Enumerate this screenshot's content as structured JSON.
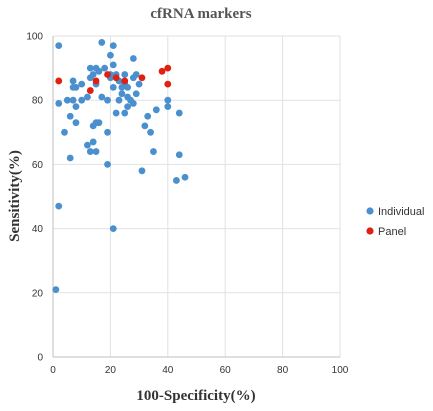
{
  "chart_data": {
    "type": "scatter",
    "title": "cfRNA markers",
    "xlabel": "100-Specificity(%)",
    "ylabel": "Sensitivity(%)",
    "xlim": [
      0,
      100
    ],
    "ylim": [
      0,
      100
    ],
    "x_ticks": [
      0,
      20,
      40,
      60,
      80,
      100
    ],
    "y_ticks": [
      0,
      20,
      40,
      60,
      80,
      100
    ],
    "x_tick_labels": [
      "0",
      "20",
      "40",
      "60",
      "80",
      "100"
    ],
    "y_tick_labels": [
      "0",
      "20",
      "40",
      "60",
      "80",
      "100"
    ],
    "grid": true,
    "legend": "right",
    "series": [
      {
        "name": "Individual",
        "color": "#4a8fce",
        "x": [
          1,
          2,
          2,
          2,
          4,
          5,
          6,
          6,
          7,
          7,
          7,
          8,
          8,
          8,
          10,
          10,
          12,
          12,
          13,
          13,
          13,
          14,
          14,
          14,
          15,
          15,
          15,
          15,
          16,
          16,
          17,
          17,
          18,
          19,
          19,
          19,
          20,
          20,
          20,
          21,
          21,
          21,
          21,
          22,
          22,
          23,
          23,
          24,
          24,
          25,
          25,
          25,
          26,
          26,
          26,
          27,
          28,
          28,
          28,
          29,
          29,
          30,
          31,
          32,
          33,
          34,
          35,
          36,
          40,
          40,
          43,
          44,
          44,
          46
        ],
        "y": [
          21,
          47,
          79,
          97,
          70,
          80,
          62,
          75,
          80,
          84,
          86,
          73,
          84,
          78,
          80,
          85,
          81,
          66,
          87,
          64,
          90,
          88,
          67,
          72,
          64,
          73,
          85,
          90,
          89,
          73,
          81,
          98,
          90,
          80,
          60,
          70,
          87,
          94,
          88,
          84,
          97,
          91,
          40,
          88,
          76,
          86,
          80,
          84,
          82,
          88,
          85,
          76,
          81,
          84,
          78,
          80,
          87,
          93,
          79,
          82,
          88,
          85,
          58,
          72,
          75,
          70,
          64,
          77,
          78,
          80,
          55,
          63,
          76,
          56
        ]
      },
      {
        "name": "Panel",
        "color": "#e02010",
        "x": [
          2,
          13,
          15,
          19,
          22,
          25,
          31,
          38,
          40,
          40
        ],
        "y": [
          86,
          83,
          86,
          88,
          87,
          86,
          87,
          89,
          90,
          85
        ]
      }
    ]
  }
}
